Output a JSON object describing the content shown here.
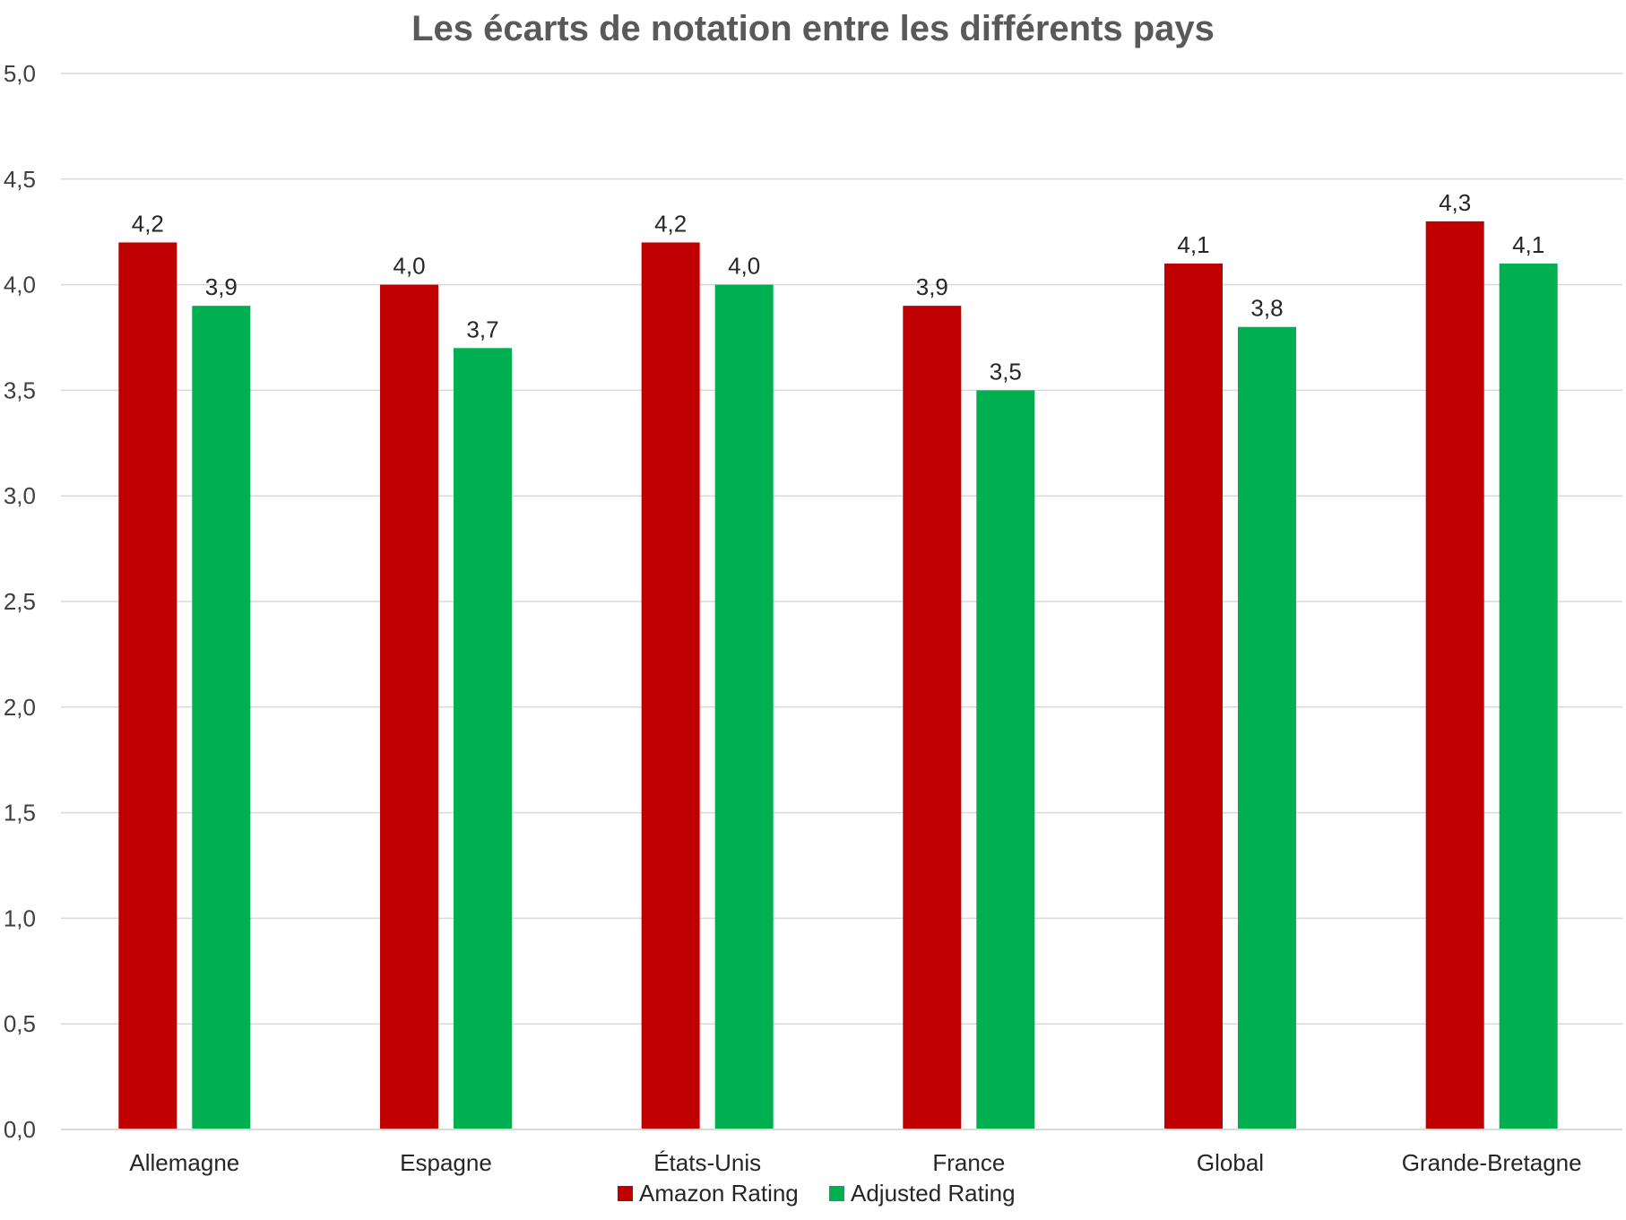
{
  "chart_data": {
    "type": "bar",
    "title": "Les écarts de notation entre les différents pays",
    "xlabel": "",
    "ylabel": "",
    "ylim": [
      0,
      5
    ],
    "ytick_step": 0.5,
    "ytick_labels": [
      "0,0",
      "0,5",
      "1,0",
      "1,5",
      "2,0",
      "2,5",
      "3,0",
      "3,5",
      "4,0",
      "4,5",
      "5,0"
    ],
    "grid": true,
    "legend_position": "bottom",
    "categories": [
      "Allemagne",
      "Espagne",
      "États-Unis",
      "France",
      "Global",
      "Grande-Bretagne"
    ],
    "series": [
      {
        "name": "Amazon Rating",
        "color": "#C00000",
        "values": [
          4.2,
          4.0,
          4.2,
          3.9,
          4.1,
          4.3
        ],
        "labels": [
          "4,2",
          "4,0",
          "4,2",
          "3,9",
          "4,1",
          "4,3"
        ]
      },
      {
        "name": "Adjusted Rating",
        "color": "#00B050",
        "values": [
          3.9,
          3.7,
          4.0,
          3.5,
          3.8,
          4.1
        ],
        "labels": [
          "3,9",
          "3,7",
          "4,0",
          "3,5",
          "3,8",
          "4,1"
        ]
      }
    ]
  }
}
